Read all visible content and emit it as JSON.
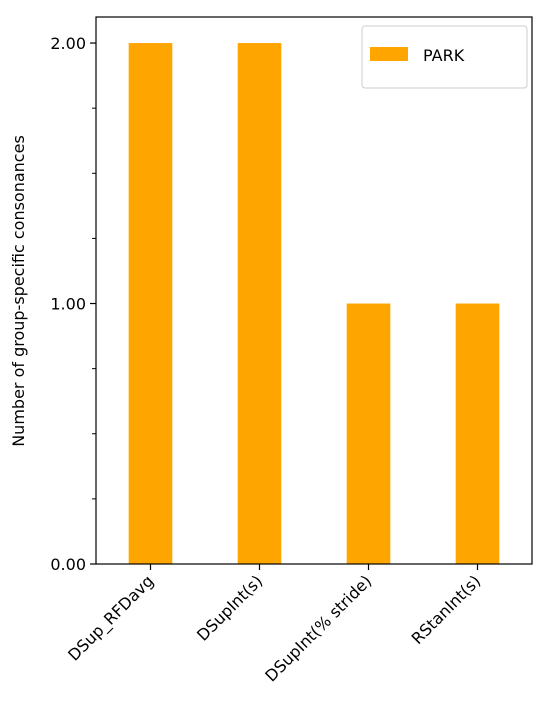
{
  "chart_data": {
    "type": "bar",
    "title": "",
    "xlabel": "",
    "ylabel": "Number of group-specific consonances",
    "categories": [
      "DSup_RFDavg",
      "DSupInt(s)",
      "DSupInt(% stride)",
      "RStanInt(s)"
    ],
    "series": [
      {
        "name": "PARK",
        "values": [
          2,
          2,
          1,
          1
        ],
        "color": "#FFA500"
      }
    ],
    "ylim": [
      0,
      2.1
    ],
    "yticks": [
      0,
      1,
      2
    ],
    "ytick_labels": [
      "0.00",
      "1.00",
      "2.00"
    ],
    "y_minor_ticks": [
      0.25,
      0.5,
      0.75,
      1.25,
      1.5,
      1.75
    ],
    "grid": false,
    "legend": {
      "position": "top-right",
      "entries": [
        "PARK"
      ]
    }
  }
}
